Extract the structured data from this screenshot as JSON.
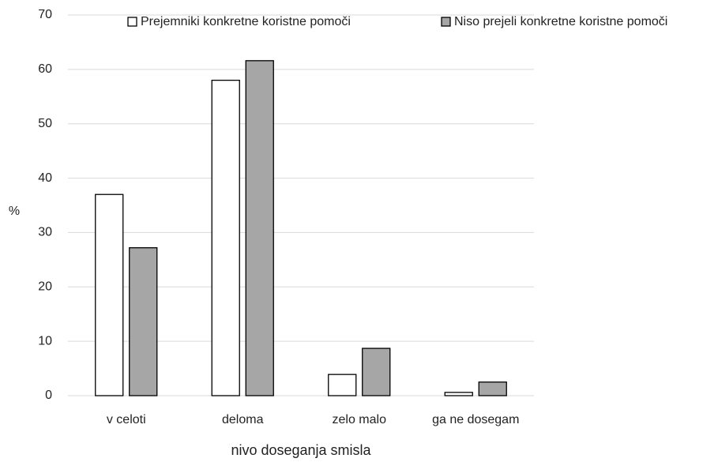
{
  "chart_data": {
    "type": "bar",
    "xlabel": "nivo doseganja smisla",
    "ylabel": "%",
    "categories": [
      "v celoti",
      "deloma",
      "zelo malo",
      "ga ne dosegam"
    ],
    "series": [
      {
        "name": "Prejemniki konkretne koristne pomoči",
        "color": "#ffffff",
        "values": [
          37,
          58,
          3.9,
          0.6
        ]
      },
      {
        "name": "Niso prejeli konkretne koristne pomoči",
        "color": "#a6a6a6",
        "values": [
          27.2,
          61.6,
          8.7,
          2.5
        ]
      }
    ],
    "ylim": [
      0,
      70
    ],
    "yticks": [
      0,
      10,
      20,
      30,
      40,
      50,
      60,
      70
    ],
    "grid": true,
    "legend": "top"
  }
}
